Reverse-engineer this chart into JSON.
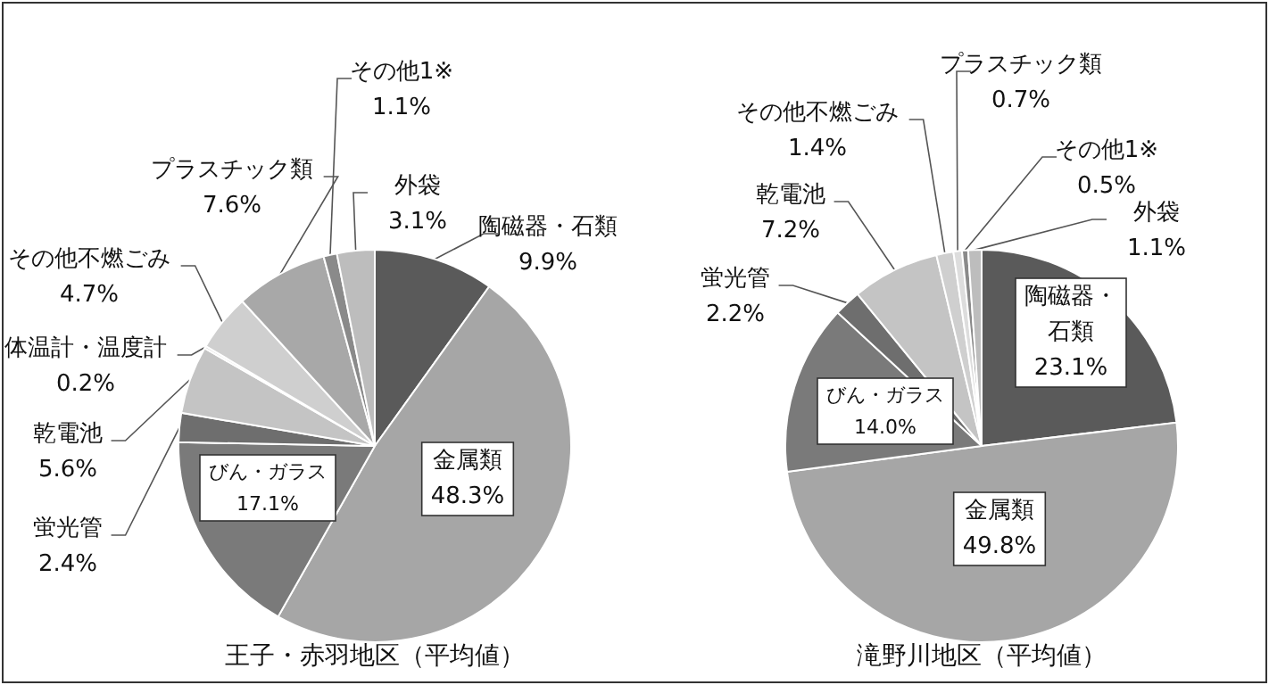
{
  "chart_data": [
    {
      "type": "pie",
      "title": "王子・赤羽地区（平均値）",
      "categories": [
        "陶磁器・石類",
        "金属類",
        "びん・ガラス",
        "蛍光管",
        "乾電池",
        "体温計・温度計",
        "その他不燃ごみ",
        "プラスチック類",
        "その他1※",
        "外袋"
      ],
      "values": [
        9.9,
        48.3,
        17.1,
        2.4,
        5.6,
        0.2,
        4.7,
        7.6,
        1.1,
        3.1
      ],
      "value_labels": [
        "9.9%",
        "48.3%",
        "17.1%",
        "2.4%",
        "5.6%",
        "0.2%",
        "4.7%",
        "7.6%",
        "1.1%",
        "3.1%"
      ],
      "colors": [
        "#5a5a5a",
        "#a6a6a6",
        "#7a7a7a",
        "#6e6e6e",
        "#c4c4c4",
        "#dddddd",
        "#cfcfcf",
        "#a8a8a8",
        "#8a8a8a",
        "#bdbdbd"
      ]
    },
    {
      "type": "pie",
      "title": "滝野川地区（平均値）",
      "categories": [
        "陶磁器・石類",
        "金属類",
        "びん・ガラス",
        "蛍光管",
        "乾電池",
        "その他不燃ごみ",
        "プラスチック類",
        "その他1※",
        "外袋"
      ],
      "values": [
        23.1,
        49.8,
        14.0,
        2.2,
        7.2,
        1.4,
        0.7,
        0.5,
        1.1
      ],
      "value_labels": [
        "23.1%",
        "49.8%",
        "14.0%",
        "2.2%",
        "7.2%",
        "1.4%",
        "0.7%",
        "0.5%",
        "1.1%"
      ],
      "colors": [
        "#5a5a5a",
        "#a6a6a6",
        "#7a7a7a",
        "#6e6e6e",
        "#c4c4c4",
        "#cfcfcf",
        "#dddddd",
        "#8a8a8a",
        "#bdbdbd"
      ]
    }
  ]
}
